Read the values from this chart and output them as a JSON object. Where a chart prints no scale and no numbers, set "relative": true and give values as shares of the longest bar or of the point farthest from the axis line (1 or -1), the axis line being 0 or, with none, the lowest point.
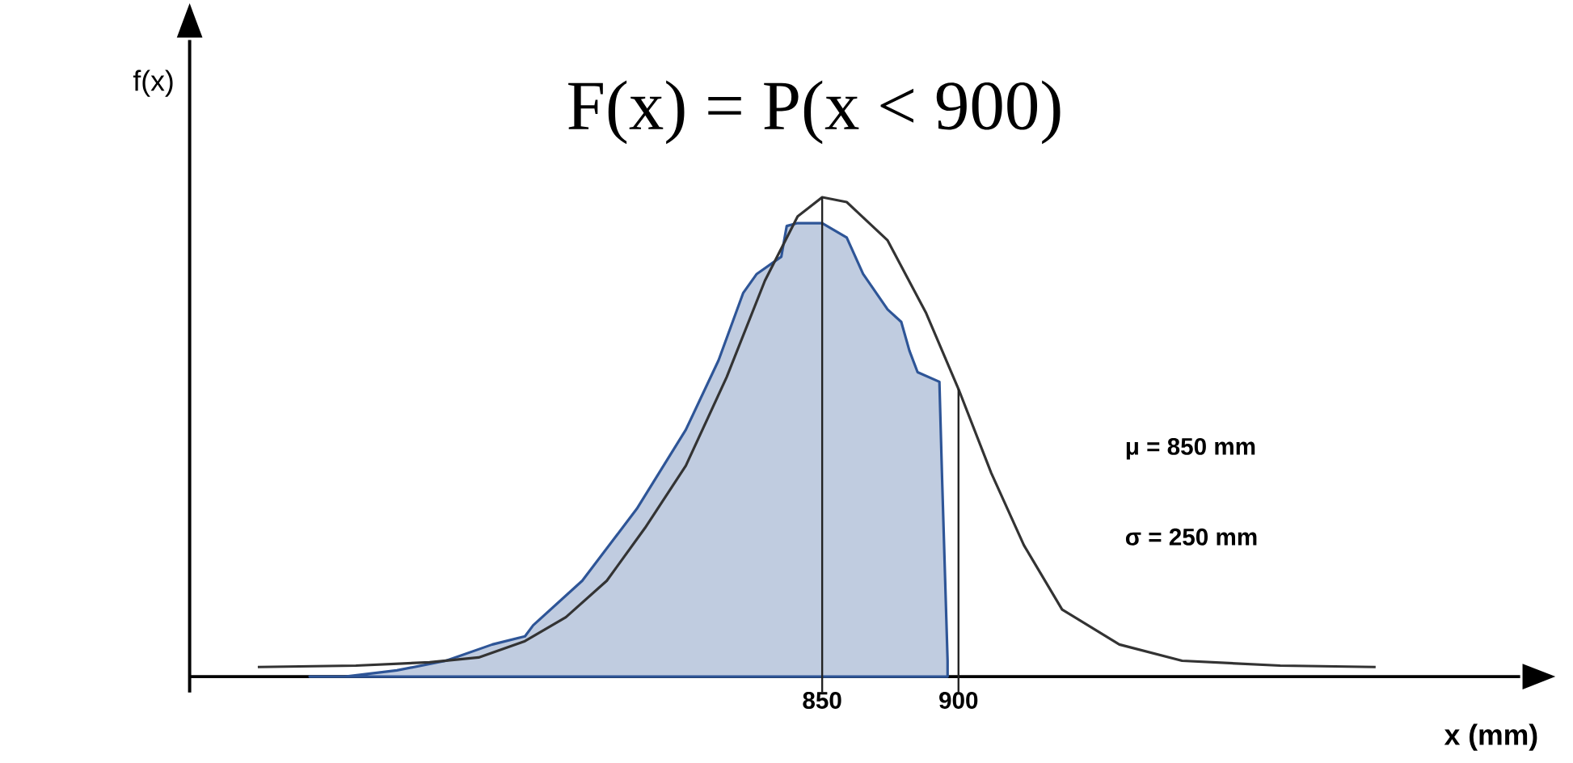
{
  "chart_data": {
    "type": "line",
    "relative": true,
    "title": "F(x) = P(x < 900)",
    "xlabel": "x (mm)",
    "ylabel": "f(x)",
    "annotations": [
      "μ = 850 mm",
      "σ = 250 mm"
    ],
    "xlim": [
      618,
      1106
    ],
    "xticks": [
      850,
      900
    ],
    "ref_lines": [
      {
        "axis": "x",
        "value": 850,
        "color": "#222222"
      },
      {
        "axis": "x",
        "value": 900,
        "color": "#222222"
      }
    ],
    "series": [
      {
        "type": "line",
        "color": "#333333",
        "x": [
          643,
          679,
          706,
          724,
          741,
          756,
          771,
          785,
          800,
          815,
          829,
          841,
          850,
          859,
          874,
          888,
          900,
          912,
          924,
          938,
          959,
          982,
          1018,
          1053
        ],
        "values": [
          0.02,
          0.023,
          0.03,
          0.04,
          0.074,
          0.124,
          0.2,
          0.31,
          0.44,
          0.625,
          0.826,
          0.96,
          1,
          0.99,
          0.91,
          0.76,
          0.6,
          0.425,
          0.274,
          0.14,
          0.067,
          0.033,
          0.023,
          0.02
        ]
      },
      {
        "type": "area",
        "color": "#2e5597",
        "x": [
          662,
          675,
          694,
          712,
          729,
          741,
          744,
          762,
          782,
          800,
          812,
          821,
          826,
          835,
          837,
          841,
          850,
          859,
          865,
          874,
          879,
          882,
          885,
          893,
          894,
          896
        ],
        "values": [
          0,
          0,
          0.013,
          0.033,
          0.067,
          0.084,
          0.107,
          0.2,
          0.35,
          0.515,
          0.66,
          0.8,
          0.84,
          0.876,
          0.94,
          0.946,
          0.946,
          0.916,
          0.84,
          0.766,
          0.74,
          0.68,
          0.635,
          0.615,
          0.41,
          0.033
        ]
      }
    ]
  }
}
